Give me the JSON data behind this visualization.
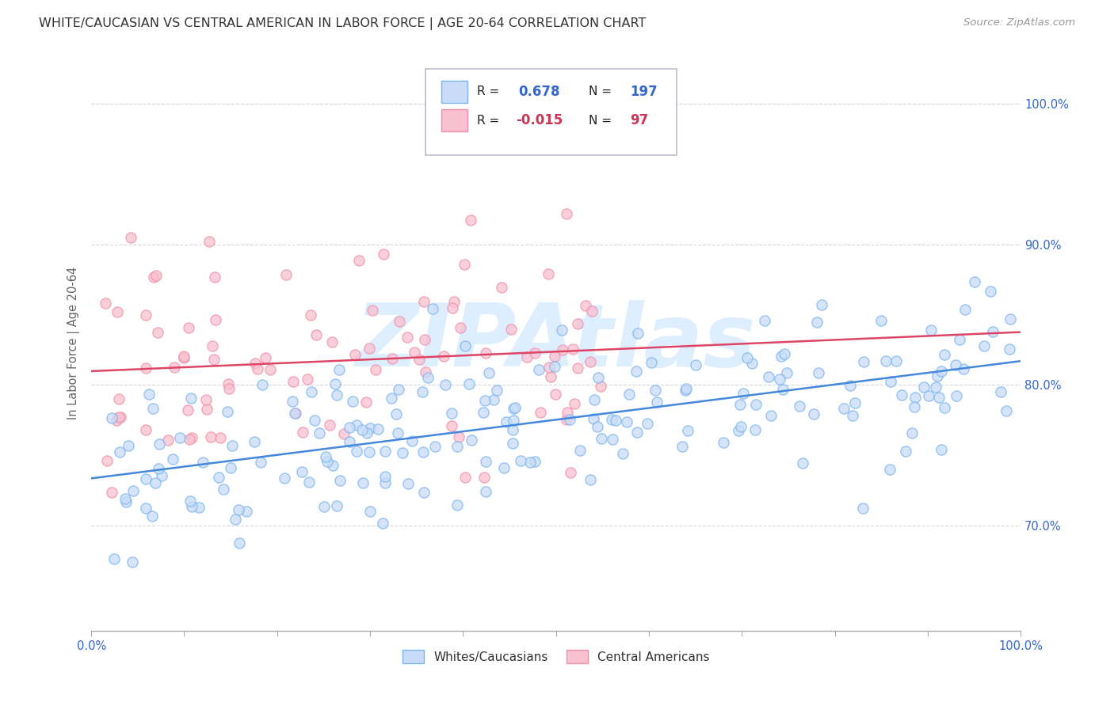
{
  "title": "WHITE/CAUCASIAN VS CENTRAL AMERICAN IN LABOR FORCE | AGE 20-64 CORRELATION CHART",
  "source_text": "Source: ZipAtlas.com",
  "ylabel": "In Labor Force | Age 20-64",
  "xlim": [
    0.0,
    1.0
  ],
  "ylim": [
    0.625,
    1.035
  ],
  "yticks": [
    0.7,
    0.8,
    0.9,
    1.0
  ],
  "ytick_labels": [
    "70.0%",
    "80.0%",
    "90.0%",
    "100.0%"
  ],
  "blue_color": "#7ab4f0",
  "pink_color": "#f090a8",
  "blue_fill": "#c8dcf8",
  "pink_fill": "#f8c0d0",
  "trend_blue_color": "#4488dd",
  "trend_pink_color": "#dd4466",
  "R_blue": 0.678,
  "N_blue": 197,
  "R_pink": -0.015,
  "N_pink": 97,
  "blue_trend_start": 0.745,
  "blue_trend_end": 0.803,
  "pink_trend_start": 0.82,
  "pink_trend_end": 0.818,
  "watermark": "ZIPAtlas",
  "watermark_color": "#ddeeff",
  "background_color": "#ffffff",
  "grid_color": "#bbbbcc",
  "title_color": "#333333",
  "axis_label_color": "#666666",
  "legend_R_color": "#3366cc",
  "legend_pink_R_color": "#cc3355"
}
